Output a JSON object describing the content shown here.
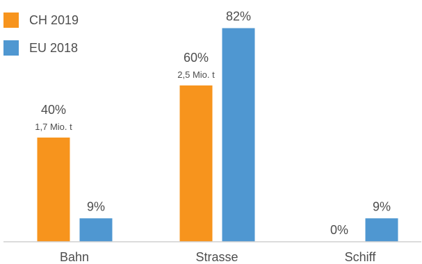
{
  "chart_data": {
    "type": "bar",
    "categories": [
      "Bahn",
      "Strasse",
      "Schiff"
    ],
    "series": [
      {
        "name": "CH 2019",
        "color": "#f7941d",
        "values": [
          40,
          60,
          0
        ],
        "value_labels": [
          "40%",
          "60%",
          "0%"
        ],
        "sub_labels": [
          "1,7 Mio. t",
          "2,5 Mio. t",
          ""
        ]
      },
      {
        "name": "EU 2018",
        "color": "#4f97d1",
        "values": [
          9,
          82,
          9
        ],
        "value_labels": [
          "9%",
          "82%",
          "9%"
        ],
        "sub_labels": [
          "",
          "",
          ""
        ]
      }
    ],
    "ylim": [
      0,
      100
    ],
    "grid": false,
    "legend_position": "top-left"
  }
}
